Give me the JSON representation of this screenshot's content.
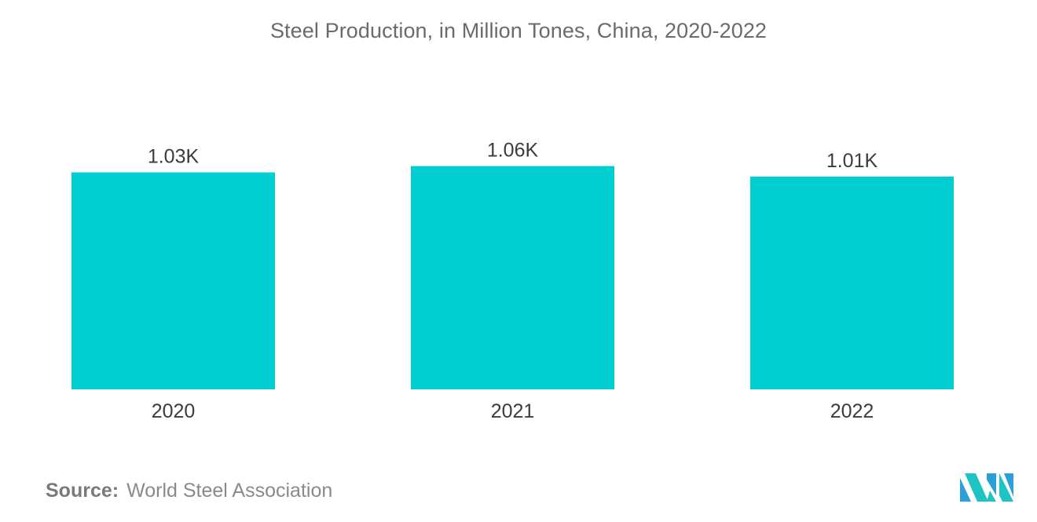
{
  "chart_data": {
    "type": "bar",
    "title": "Steel Production, in Million Tones, China, 2020-2022",
    "categories": [
      "2020",
      "2021",
      "2022"
    ],
    "values": [
      1030,
      1060,
      1010
    ],
    "data_labels": [
      "1.03K",
      "1.06K",
      "1.01K"
    ],
    "xlabel": "",
    "ylabel": "",
    "ylim": [
      0,
      1200
    ],
    "grid": false,
    "legend": "none",
    "bar_color": "#00CED1"
  },
  "source": {
    "label": "Source:",
    "text": "World Steel Association"
  },
  "logo": {
    "icon": "mordor-intelligence-logo",
    "colors": [
      "#2a9fd8",
      "#1ec3c3"
    ]
  }
}
